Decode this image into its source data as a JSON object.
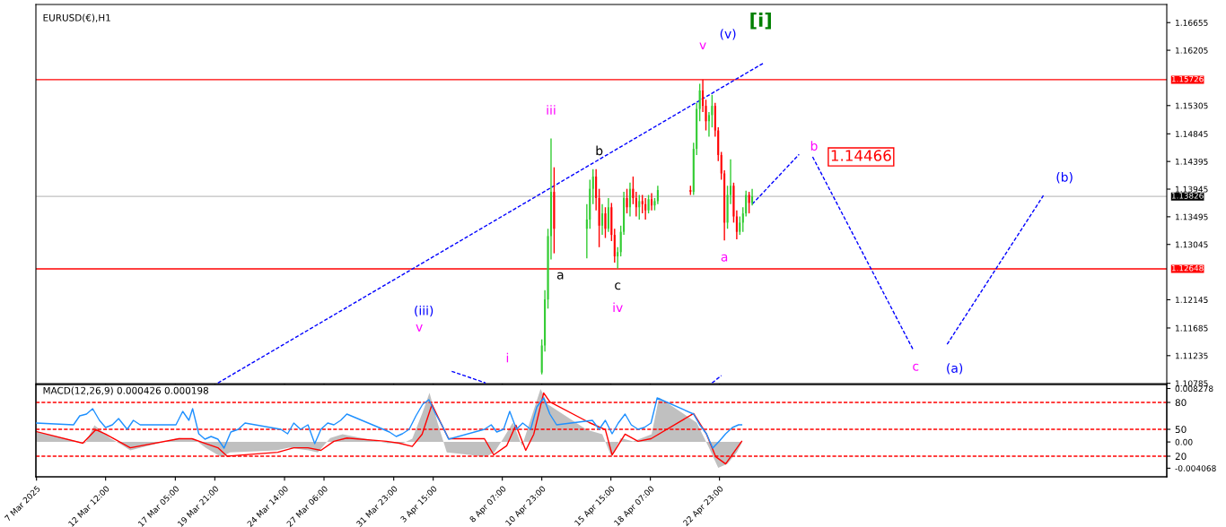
{
  "chart_data": [
    {
      "type": "candlestick",
      "title": "EURUSD(€),H1",
      "tick_labels": "y",
      "grid": false,
      "xlim": [
        "2025-03-07T19:00",
        "2025-05-23T04:00"
      ],
      "ylim": [
        1.1078,
        1.1695
      ],
      "xticks": [
        {
          "value": "2025-03-07T20:00",
          "label": null
        },
        {
          "value": "2025-03-12T12:00",
          "label": null
        },
        {
          "value": "2025-03-17T05:00",
          "label": null
        },
        {
          "value": "2025-03-19T21:00",
          "label": null
        },
        {
          "value": "2025-03-24T14:00",
          "label": null
        },
        {
          "value": "2025-03-27T06:00",
          "label": null
        },
        {
          "value": "2025-03-31T23:00",
          "label": null
        },
        {
          "value": "2025-04-03T15:00",
          "label": null
        },
        {
          "value": "2025-04-08T07:00",
          "label": null
        },
        {
          "value": "2025-04-10T23:00",
          "label": null
        },
        {
          "value": "2025-04-15T15:00",
          "label": null
        },
        {
          "value": "2025-04-18T07:00",
          "label": null
        },
        {
          "value": "2025-04-22T23:00",
          "label": null
        }
      ],
      "yticks": [
        1.16655,
        1.16205,
        1.15305,
        1.14845,
        1.14395,
        1.13945,
        1.13495,
        1.13045,
        1.12145,
        1.11685,
        1.11235,
        1.10785
      ],
      "x": [
        "2025-04-10T23:00",
        "2025-04-11T04:00",
        "2025-04-11T09:00",
        "2025-04-11T14:00",
        "2025-04-11T19:00",
        "2025-04-14T00:00",
        "2025-04-14T05:00",
        "2025-04-14T10:00",
        "2025-04-14T15:00",
        "2025-04-14T20:00",
        "2025-04-15T01:00",
        "2025-04-15T06:00",
        "2025-04-15T11:00",
        "2025-04-15T16:00",
        "2025-04-15T21:00",
        "2025-04-16T02:00",
        "2025-04-16T07:00",
        "2025-04-16T12:00",
        "2025-04-16T17:00",
        "2025-04-16T22:00",
        "2025-04-17T03:00",
        "2025-04-17T08:00",
        "2025-04-17T13:00",
        "2025-04-17T18:00",
        "2025-04-17T23:00",
        "2025-04-18T04:00",
        "2025-04-18T09:00",
        "2025-04-18T14:00",
        "2025-04-18T19:00",
        "2025-04-21T00:00",
        "2025-04-21T05:00",
        "2025-04-21T10:00",
        "2025-04-21T15:00",
        "2025-04-21T20:00",
        "2025-04-22T01:00",
        "2025-04-22T06:00",
        "2025-04-22T11:00",
        "2025-04-22T16:00",
        "2025-04-22T21:00",
        "2025-04-23T02:00",
        "2025-04-23T07:00",
        "2025-04-23T12:00",
        "2025-04-23T17:00",
        "2025-04-23T22:00",
        "2025-04-24T03:00",
        "2025-04-24T08:00",
        "2025-04-24T13:00",
        "2025-04-24T18:00",
        "2025-04-24T23:00",
        "2025-04-25T04:00"
      ],
      "ohlc": [
        [
          1.1096,
          1.115,
          1.1093,
          1.114
        ],
        [
          1.114,
          1.123,
          1.113,
          1.1215
        ],
        [
          1.1215,
          1.133,
          1.12,
          1.1318
        ],
        [
          1.1318,
          1.1477,
          1.128,
          1.139
        ],
        [
          1.139,
          1.143,
          1.129,
          1.133
        ],
        [
          1.133,
          1.137,
          1.1282,
          1.1345
        ],
        [
          1.1345,
          1.141,
          1.133,
          1.1395
        ],
        [
          1.1395,
          1.1427,
          1.137,
          1.1415
        ],
        [
          1.1415,
          1.1427,
          1.136,
          1.138
        ],
        [
          1.138,
          1.1395,
          1.13,
          1.1335
        ],
        [
          1.1335,
          1.137,
          1.132,
          1.1355
        ],
        [
          1.1355,
          1.1365,
          1.1315,
          1.133
        ],
        [
          1.133,
          1.138,
          1.1325,
          1.1365
        ],
        [
          1.1365,
          1.1372,
          1.131,
          1.132
        ],
        [
          1.132,
          1.133,
          1.1275,
          1.1285
        ],
        [
          1.1285,
          1.13,
          1.1265,
          1.1292
        ],
        [
          1.1292,
          1.1335,
          1.1285,
          1.1325
        ],
        [
          1.1325,
          1.139,
          1.132,
          1.138
        ],
        [
          1.138,
          1.1395,
          1.1355,
          1.1365
        ],
        [
          1.1365,
          1.1405,
          1.135,
          1.1395
        ],
        [
          1.1395,
          1.1415,
          1.137,
          1.138
        ],
        [
          1.138,
          1.139,
          1.135,
          1.1365
        ],
        [
          1.1365,
          1.1385,
          1.1345,
          1.1375
        ],
        [
          1.1375,
          1.1385,
          1.1355,
          1.137
        ],
        [
          1.137,
          1.138,
          1.1345,
          1.136
        ],
        [
          1.136,
          1.1385,
          1.1355,
          1.1378
        ],
        [
          1.1378,
          1.1388,
          1.136,
          1.1368
        ],
        [
          1.1368,
          1.138,
          1.136,
          1.1375
        ],
        [
          1.1375,
          1.14,
          1.137,
          1.1393
        ],
        [
          1.1393,
          1.14,
          1.1385,
          1.139
        ],
        [
          1.139,
          1.147,
          1.1385,
          1.146
        ],
        [
          1.146,
          1.1535,
          1.145,
          1.1525
        ],
        [
          1.1525,
          1.1566,
          1.1505,
          1.1555
        ],
        [
          1.1555,
          1.1573,
          1.152,
          1.153
        ],
        [
          1.153,
          1.154,
          1.149,
          1.1505
        ],
        [
          1.1505,
          1.152,
          1.148,
          1.1515
        ],
        [
          1.1515,
          1.1548,
          1.1495,
          1.153
        ],
        [
          1.153,
          1.1535,
          1.148,
          1.149
        ],
        [
          1.149,
          1.1495,
          1.144,
          1.145
        ],
        [
          1.145,
          1.1455,
          1.141,
          1.142
        ],
        [
          1.142,
          1.1425,
          1.1311,
          1.134
        ],
        [
          1.134,
          1.14,
          1.133,
          1.1385
        ],
        [
          1.1385,
          1.1443,
          1.137,
          1.14
        ],
        [
          1.14,
          1.1405,
          1.134,
          1.135
        ],
        [
          1.135,
          1.136,
          1.1313,
          1.1325
        ],
        [
          1.1325,
          1.135,
          1.132,
          1.134
        ],
        [
          1.134,
          1.1365,
          1.1325,
          1.1355
        ],
        [
          1.1355,
          1.1392,
          1.135,
          1.1385
        ],
        [
          1.1385,
          1.139,
          1.1355,
          1.1372
        ],
        [
          1.1372,
          1.1395,
          1.1368,
          1.1383
        ]
      ],
      "colors": [
        "#33cc33",
        "#33cc33",
        "#33cc33",
        "#33cc33",
        "#ff0000",
        "#33cc33",
        "#33cc33",
        "#33cc33",
        "#ff0000",
        "#ff0000",
        "#33cc33",
        "#ff0000",
        "#33cc33",
        "#ff0000",
        "#ff0000",
        "#33cc33",
        "#33cc33",
        "#33cc33",
        "#ff0000",
        "#33cc33",
        "#ff0000",
        "#ff0000",
        "#33cc33",
        "#ff0000",
        "#ff0000",
        "#33cc33",
        "#ff0000",
        "#33cc33",
        "#33cc33",
        "#ff0000",
        "#33cc33",
        "#33cc33",
        "#33cc33",
        "#ff0000",
        "#ff0000",
        "#33cc33",
        "#33cc33",
        "#ff0000",
        "#ff0000",
        "#ff0000",
        "#ff0000",
        "#33cc33",
        "#33cc33",
        "#ff0000",
        "#ff0000",
        "#33cc33",
        "#33cc33",
        "#33cc33",
        "#ff0000",
        "#33cc33"
      ],
      "series": [
        {
          "type": "line",
          "color": "#0000ff",
          "line_style": "dashed",
          "x": [
            "2025-03-20T02:00",
            "2025-04-25T23:00"
          ],
          "values": [
            1.1079,
            1.16
          ]
        },
        {
          "type": "line",
          "color": "#0000ff",
          "line_style": "dashed",
          "x": [
            "2025-04-22T11:00",
            "2025-04-23T02:00"
          ],
          "values": [
            1.1079,
            1.1091
          ]
        },
        {
          "type": "line",
          "color": "#0000ff",
          "line_style": "dashed",
          "x": [
            "2025-04-04T21:00",
            "2025-04-07T04:00"
          ],
          "values": [
            1.1098,
            1.1079
          ]
        },
        {
          "type": "line",
          "color": "#0000ff",
          "line_style": "dashed",
          "x": [
            "2025-04-25T04:00",
            "2025-04-28T08:00"
          ],
          "values": [
            1.137,
            1.1451
          ]
        },
        {
          "type": "line",
          "color": "#0000ff",
          "line_style": "dashed",
          "x": [
            "2025-04-29T06:00",
            "2025-05-06T01:00"
          ],
          "values": [
            1.1447,
            1.1133
          ]
        },
        {
          "type": "line",
          "color": "#0000ff",
          "line_style": "dashed",
          "x": [
            "2025-05-08T08:00",
            "2025-05-14T20:00"
          ],
          "values": [
            1.1142,
            1.1384
          ]
        }
      ],
      "ref_lines": [
        {
          "axis": "y",
          "value": 1.15726,
          "label": "1.15726",
          "color": "#ff0000",
          "line_style": "solid"
        },
        {
          "axis": "y",
          "value": 1.12648,
          "label": "1.12648",
          "color": "#ff0000",
          "line_style": "solid"
        },
        {
          "axis": "y",
          "value": 1.13826,
          "label": "1.13826",
          "color": "#c0c0c0",
          "line_style": "solid"
        }
      ],
      "annotations": [
        "[i]",
        "(v)",
        {
          "text": "v",
          "x": "2025-04-21T20:00",
          "y": 1.1573
        },
        {
          "text": "iii",
          "x": "2025-04-11T14:00",
          "y": 1.1477
        },
        {
          "text": "b",
          "x": "2025-04-14T10:00",
          "y": 1.1427
        },
        {
          "text": "a",
          "x": "2025-04-11T19:00",
          "y": 1.129
        },
        {
          "text": "c",
          "x": "2025-04-16T02:00",
          "y": 1.1265
        },
        {
          "text": "iv",
          "x": "2025-04-16T02:00",
          "y": 1.1265
        },
        {
          "text": "a",
          "x": "2025-04-23T07:00",
          "y": 1.1311
        },
        {
          "text": "b",
          "x": "2025-04-28T08:00",
          "y": 1.1451
        },
        {
          "text": "1.14466",
          "x": "2025-04-29T06:00",
          "y": 1.1447
        },
        {
          "text": "c",
          "x": "2025-05-06T01:00",
          "y": 1.1133
        },
        {
          "text": "(a)",
          "x": "2025-05-08T08:00",
          "y": 1.1142
        },
        {
          "text": "(b)",
          "x": "2025-05-14T20:00",
          "y": 1.1384
        },
        "(iii)",
        "v",
        "i"
      ]
    },
    {
      "type": "line",
      "title": "MACD(12,26,9) 0.000426 0.000198",
      "grid": false,
      "xlim": [
        "2025-03-07T19:00",
        "2025-05-23T04:00"
      ],
      "ylim": [
        -0.0054,
        0.0089
      ],
      "y2lim": [
        -3,
        100
      ],
      "xticks": [
        {
          "value": "2025-03-07T20:00",
          "label": "7 Mar 2025"
        },
        {
          "value": "2025-03-12T12:00",
          "label": "12 Mar 12:00"
        },
        {
          "value": "2025-03-17T05:00",
          "label": "17 Mar 05:00"
        },
        {
          "value": "2025-03-19T21:00",
          "label": "19 Mar 21:00"
        },
        {
          "value": "2025-03-24T14:00",
          "label": "24 Mar 14:00"
        },
        {
          "value": "2025-03-27T06:00",
          "label": "27 Mar 06:00"
        },
        {
          "value": "2025-03-31T23:00",
          "label": "31 Mar 23:00"
        },
        {
          "value": "2025-04-03T15:00",
          "label": "3 Apr 15:00"
        },
        {
          "value": "2025-04-08T07:00",
          "label": "8 Apr 07:00"
        },
        {
          "value": "2025-04-10T23:00",
          "label": "10 Apr 23:00"
        },
        {
          "value": "2025-04-15T15:00",
          "label": "15 Apr 15:00"
        },
        {
          "value": "2025-04-18T07:00",
          "label": "18 Apr 07:00"
        },
        {
          "value": "2025-04-22T23:00",
          "label": "22 Apr 23:00"
        }
      ],
      "yticks": [
        0.008278,
        {
          "value": 0,
          "label": "0.00"
        },
        -0.004068
      ],
      "y2ticks": [
        80,
        50,
        20
      ],
      "series": [
        {
          "type": "area",
          "color": "#c0c0c0",
          "x": [
            "2025-03-07T20:00",
            "2025-03-11T03:00",
            "2025-03-11T18:00",
            "2025-03-12T19:00",
            "2025-03-13T15:00",
            "2025-03-14T04:00",
            "2025-03-17T10:00",
            "2025-03-18T11:00",
            "2025-03-19T06:00",
            "2025-03-20T07:00",
            "2025-03-20T22:00",
            "2025-03-24T01:00",
            "2025-03-24T21:00",
            "2025-03-26T05:00",
            "2025-03-26T20:00",
            "2025-03-27T16:00",
            "2025-03-28T12:00",
            "2025-03-31T13:00",
            "2025-04-01T14:00",
            "2025-04-02T05:00",
            "2025-04-02T21:00",
            "2025-04-03T09:00",
            "2025-04-03T22:00",
            "2025-04-04T13:00",
            "2025-04-07T04:00",
            "2025-04-07T18:00",
            "2025-04-08T09:00",
            "2025-04-09T00:00",
            "2025-04-09T15:00",
            "2025-04-10T08:00",
            "2025-04-10T21:00",
            "2025-04-11T09:00",
            "2025-04-14T00:00",
            "2025-04-15T01:00",
            "2025-04-15T16:00",
            "2025-04-16T07:00",
            "2025-04-17T03:00",
            "2025-04-18T09:00",
            "2025-04-18T21:00",
            "2025-04-21T10:00",
            "2025-04-22T06:00",
            "2025-04-22T21:00",
            "2025-04-23T12:00",
            "2025-04-24T03:00",
            "2025-04-24T11:00"
          ],
          "values": [
            0.0016,
            -0.0002,
            0.0026,
            0.0006,
            -0.0005,
            -0.0013,
            0.0006,
            0.0005,
            -0.0009,
            -0.0023,
            -0.0016,
            -0.0013,
            -0.0009,
            -0.0013,
            -0.0016,
            0.0006,
            0.0012,
            -0.0002,
            -0.0002,
            0.0005,
            0.0044,
            0.0076,
            0.003,
            -0.0016,
            -0.0023,
            -0.0016,
            0.0006,
            0.003,
            -0.0006,
            0.0044,
            0.0082,
            0.0058,
            0.0019,
            0.0012,
            -0.0023,
            0.0006,
            0.0001,
            0.0012,
            0.0069,
            0.003,
            -0.0009,
            -0.004,
            -0.0034,
            -0.0016,
            -0.0002
          ]
        },
        {
          "type": "line",
          "color": "#ff0000",
          "x": [
            "2025-03-07T20:00",
            "2025-03-10T23:00",
            "2025-03-11T20:00",
            "2025-03-12T12:00",
            "2025-03-13T09:00",
            "2025-03-14T04:00",
            "2025-03-17T11:00",
            "2025-03-18T08:00",
            "2025-03-19T05:00",
            "2025-03-20T02:00",
            "2025-03-20T17:00",
            "2025-03-24T03:00",
            "2025-03-25T05:00",
            "2025-03-26T04:00",
            "2025-03-27T01:00",
            "2025-03-27T22:00",
            "2025-03-28T19:00",
            "2025-03-31T11:00",
            "2025-04-01T08:00",
            "2025-04-02T05:00",
            "2025-04-02T21:00",
            "2025-04-03T13:00",
            "2025-04-04T05:00",
            "2025-04-04T16:00",
            "2025-04-07T02:00",
            "2025-04-07T17:00",
            "2025-04-08T14:00",
            "2025-04-09T05:00",
            "2025-04-09T21:00",
            "2025-04-10T10:00",
            "2025-04-11T02:00",
            "2025-04-11T12:00",
            "2025-04-14T04:00",
            "2025-04-15T06:00",
            "2025-04-15T17:00",
            "2025-04-16T14:00",
            "2025-04-17T11:00",
            "2025-04-18T08:00",
            "2025-04-21T05:00",
            "2025-04-22T02:00",
            "2025-04-22T17:00",
            "2025-04-23T09:00",
            "2025-04-24T11:00"
          ],
          "values": [
            0.0016,
            -0.0002,
            0.0019,
            0.0012,
            0.0001,
            -0.0009,
            0.0005,
            0.0005,
            -0.0002,
            -0.0009,
            -0.0022,
            -0.0016,
            -0.0009,
            -0.0009,
            -0.0013,
            0.0001,
            0.0006,
            0.0001,
            -0.0002,
            -0.0007,
            0.0012,
            0.0058,
            0.0026,
            0.0005,
            0.0005,
            -0.002,
            -0.0006,
            0.0026,
            -0.0013,
            0.0012,
            0.0076,
            0.0062,
            0.003,
            0.0019,
            -0.002,
            0.0012,
            0.0001,
            0.0005,
            0.0044,
            0.0012,
            -0.0023,
            -0.0034,
            0.0001
          ]
        },
        {
          "type": "line",
          "color": "#1e90ff",
          "axis": "y2",
          "x": [
            "2025-03-07T20:00",
            "2025-03-10T08:00",
            "2025-03-10T18:00",
            "2025-03-11T05:00",
            "2025-03-11T15:00",
            "2025-03-12T02:00",
            "2025-03-12T12:00",
            "2025-03-12T23:00",
            "2025-03-13T09:00",
            "2025-03-13T23:00",
            "2025-03-14T09:00",
            "2025-03-14T20:00",
            "2025-03-17T06:00",
            "2025-03-17T17:00",
            "2025-03-18T03:00",
            "2025-03-18T09:00",
            "2025-03-18T19:00",
            "2025-03-19T05:00",
            "2025-03-19T15:00",
            "2025-03-20T02:00",
            "2025-03-20T12:00",
            "2025-03-20T23:00",
            "2025-03-21T11:00",
            "2025-03-21T22:00",
            "2025-03-24T08:00",
            "2025-03-24T19:00",
            "2025-03-25T05:00",
            "2025-03-25T16:00",
            "2025-03-26T04:00",
            "2025-03-26T15:00",
            "2025-03-27T01:00",
            "2025-03-27T12:00",
            "2025-03-27T22:00",
            "2025-03-28T09:00",
            "2025-03-28T19:00",
            "2025-03-31T06:00",
            "2025-03-31T16:00",
            "2025-04-01T03:00",
            "2025-04-01T13:00",
            "2025-04-02T00:00",
            "2025-04-02T11:00",
            "2025-04-02T22:00",
            "2025-04-03T08:00",
            "2025-04-03T19:00",
            "2025-04-04T05:00",
            "2025-04-04T16:00",
            "2025-04-07T02:00",
            "2025-04-07T13:00",
            "2025-04-07T22:00",
            "2025-04-08T09:00",
            "2025-04-08T19:00",
            "2025-04-09T06:00",
            "2025-04-09T16:00",
            "2025-04-10T05:00",
            "2025-04-10T15:00",
            "2025-04-11T02:00",
            "2025-04-11T12:00",
            "2025-04-11T23:00",
            "2025-04-14T09:00",
            "2025-04-14T20:00",
            "2025-04-15T06:00",
            "2025-04-15T17:00",
            "2025-04-16T03:00",
            "2025-04-16T14:00",
            "2025-04-17T00:00",
            "2025-04-17T11:00",
            "2025-04-17T21:00",
            "2025-04-18T08:00",
            "2025-04-18T18:00",
            "2025-04-21T05:00",
            "2025-04-21T15:00",
            "2025-04-22T02:00",
            "2025-04-22T12:00",
            "2025-04-22T23:00",
            "2025-04-23T09:00",
            "2025-04-23T20:00",
            "2025-04-24T06:00",
            "2025-04-24T11:00"
          ],
          "values": [
            57,
            55,
            65,
            67,
            73,
            60,
            52,
            55,
            62,
            50,
            60,
            55,
            55,
            70,
            60,
            73,
            45,
            39,
            42,
            39,
            29,
            47,
            50,
            57,
            50,
            45,
            57,
            50,
            55,
            34,
            50,
            57,
            55,
            60,
            67,
            50,
            47,
            42,
            45,
            50,
            65,
            78,
            83,
            67,
            55,
            39,
            50,
            55,
            47,
            50,
            70,
            50,
            57,
            50,
            75,
            85,
            67,
            55,
            60,
            50,
            60,
            45,
            57,
            67,
            55,
            50,
            52,
            57,
            85,
            67,
            55,
            45,
            29,
            37,
            45,
            52,
            55,
            55
          ]
        }
      ],
      "ref_lines": [
        {
          "axis": "y2",
          "value": 80,
          "color": "#ff0000",
          "line_style": "dashed"
        },
        {
          "axis": "y2",
          "value": 50,
          "color": "#ff0000",
          "line_style": "dashed"
        },
        {
          "axis": "y2",
          "value": 20,
          "color": "#ff0000",
          "line_style": "dashed"
        }
      ]
    }
  ]
}
